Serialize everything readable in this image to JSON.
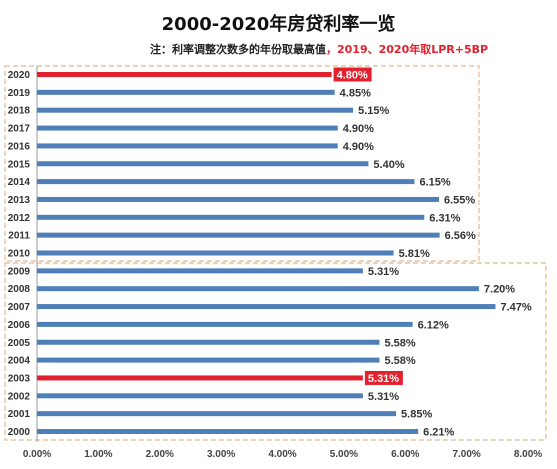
{
  "chart_data": {
    "type": "bar",
    "orientation": "horizontal",
    "title": "2000-2020年房贷利率一览",
    "subtitle_prefix": "注：利率调整次数多的年份取最高值",
    "subtitle_highlight": "，2019、2020年取LPR+5BP",
    "categories": [
      "2020",
      "2019",
      "2018",
      "2017",
      "2016",
      "2015",
      "2014",
      "2013",
      "2012",
      "2011",
      "2010",
      "2009",
      "2008",
      "2007",
      "2006",
      "2005",
      "2004",
      "2003",
      "2002",
      "2001",
      "2000"
    ],
    "values": [
      4.8,
      4.85,
      5.15,
      4.9,
      4.9,
      5.4,
      6.15,
      6.55,
      6.31,
      6.56,
      5.81,
      5.31,
      7.2,
      7.47,
      6.12,
      5.58,
      5.58,
      5.31,
      5.31,
      5.85,
      6.21
    ],
    "value_labels": [
      "4.80%",
      "4.85%",
      "5.15%",
      "4.90%",
      "4.90%",
      "5.40%",
      "6.15%",
      "6.55%",
      "6.31%",
      "6.56%",
      "5.81%",
      "5.31%",
      "7.20%",
      "7.47%",
      "6.12%",
      "5.58%",
      "5.58%",
      "5.31%",
      "5.31%",
      "5.85%",
      "6.21%"
    ],
    "highlighted": [
      "2020",
      "2003"
    ],
    "x_ticks": [
      "0.00%",
      "1.00%",
      "2.00%",
      "3.00%",
      "4.00%",
      "5.00%",
      "6.00%",
      "7.00%",
      "8.00%"
    ],
    "xlim": [
      0,
      8
    ],
    "grid": false,
    "colors": {
      "bar": "#4f7fb8",
      "highlight": "#e3202d",
      "box": "#e6b98a"
    }
  }
}
